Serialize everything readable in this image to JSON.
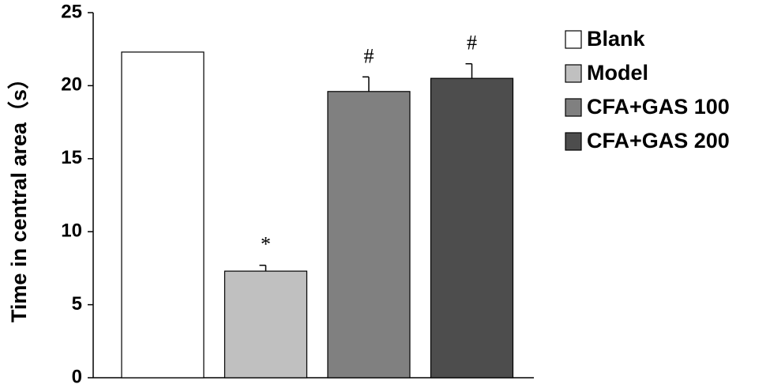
{
  "chart_data": {
    "type": "bar",
    "y_label": "Time in central area（s）",
    "categories": [
      "Blank",
      "Model",
      "CFA+GAS 100",
      "CFA+GAS 200"
    ],
    "values": [
      22.3,
      7.3,
      19.6,
      20.5
    ],
    "errors": [
      null,
      0.4,
      1.0,
      1.0
    ],
    "annotations": [
      null,
      "*",
      "#",
      "#"
    ],
    "colors": [
      "#ffffff",
      "#c0c0c0",
      "#808080",
      "#4d4d4d"
    ],
    "ylim": [
      0,
      25
    ],
    "yticks": [
      0,
      5,
      10,
      15,
      20,
      25
    ],
    "legend": "right"
  }
}
